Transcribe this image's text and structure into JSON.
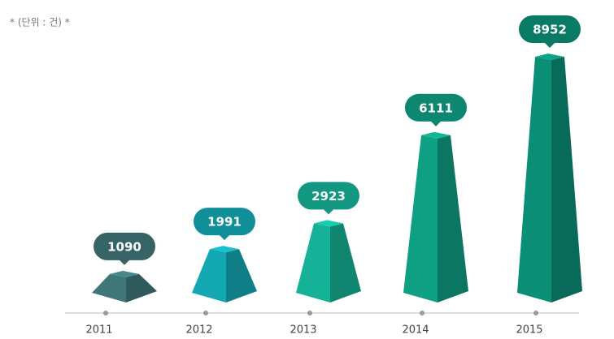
{
  "chart_data": {
    "type": "bar",
    "subtitle": "* (단위 : 건) *",
    "categories": [
      "2011",
      "2012",
      "2013",
      "2014",
      "2015"
    ],
    "values": [
      1090,
      1991,
      2923,
      6111,
      8952
    ],
    "colors": [
      "#3f7678",
      "#14a8b3",
      "#15b297",
      "#0f9f82",
      "#0a8f76"
    ]
  }
}
